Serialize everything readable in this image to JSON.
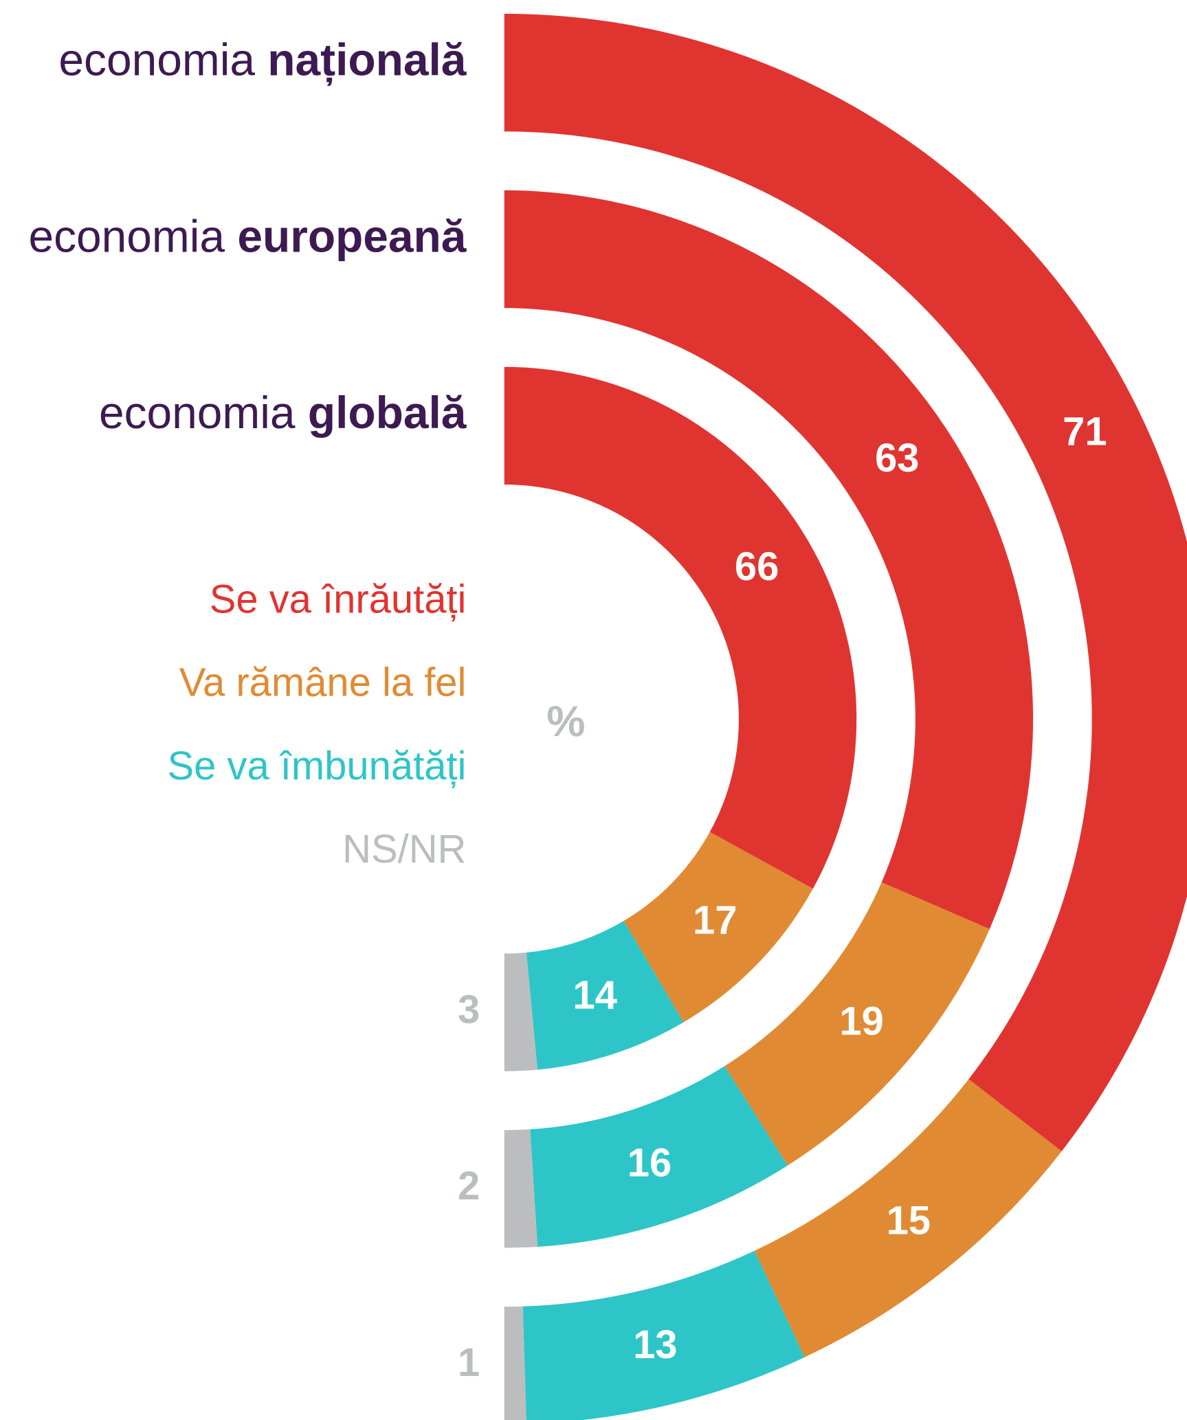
{
  "chart_data": {
    "type": "radial-stacked-bar",
    "categories": [
      "economia națională",
      "economia europeană",
      "economia globală"
    ],
    "series": [
      {
        "name": "Se va înrăutăți",
        "color": "#e03431",
        "values": [
          71,
          63,
          66
        ]
      },
      {
        "name": "Va rămâne la fel",
        "color": "#e08b33",
        "values": [
          15,
          19,
          17
        ]
      },
      {
        "name": "Se va îmbunătăți",
        "color": "#2ec5c8",
        "values": [
          13,
          16,
          14
        ]
      },
      {
        "name": "NS/NR",
        "color": "#bcbdbf",
        "values": [
          1,
          2,
          3
        ]
      }
    ],
    "annotation": "%"
  }
}
